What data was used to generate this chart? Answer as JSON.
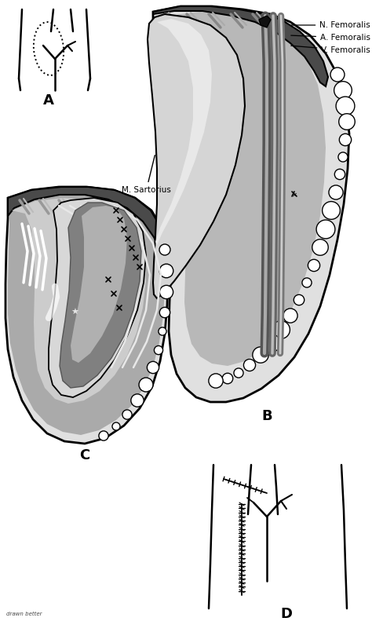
{
  "bg_color": "#ffffff",
  "label_A": "A",
  "label_B": "B",
  "label_C": "C",
  "label_D": "D",
  "annotations_B": [
    "N. Femoralis",
    "A. Femoralis",
    "V. Femoralis"
  ],
  "annotation_sartorius": "M. Sartorius",
  "watermark": "drawn better",
  "gray_dark": "#4a4a4a",
  "gray_mid": "#888888",
  "gray_light": "#b8b8b8",
  "gray_very_light": "#e0e0e0",
  "gray_white_fat": "#f0f0f0",
  "line_color": "#000000"
}
